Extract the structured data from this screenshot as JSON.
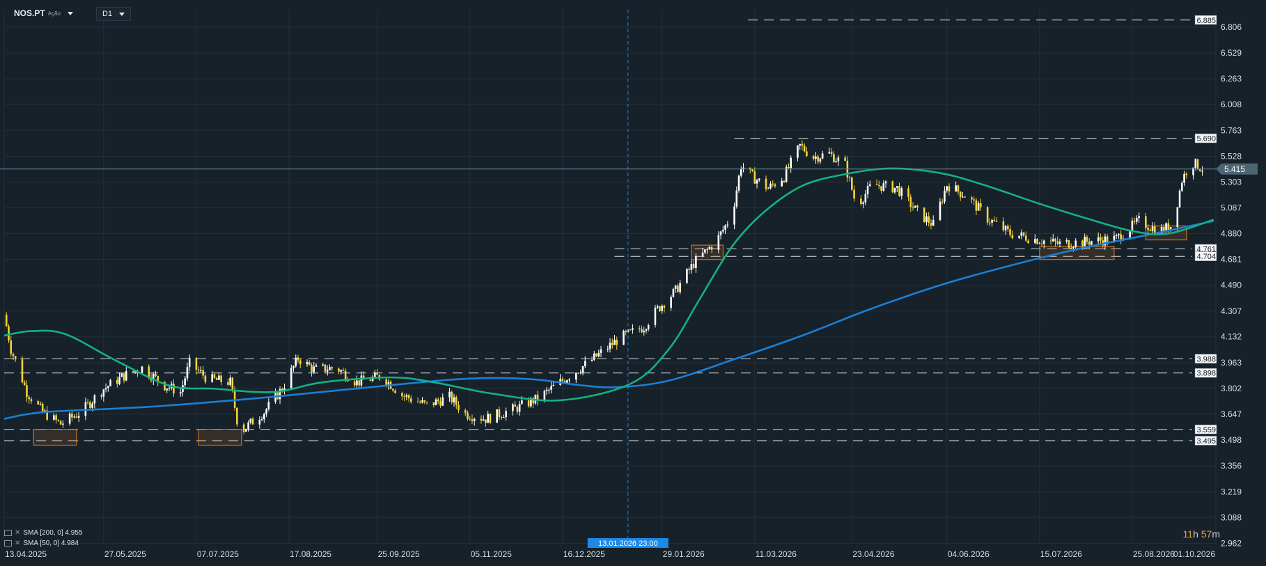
{
  "header": {
    "symbol": "NOS.PT",
    "instrument_type": "Ação",
    "timeframe": "D1"
  },
  "indicators": [
    {
      "label": "SMA [200, 0] 4.955",
      "color": "#1a7fd4"
    },
    {
      "label": "SMA [50, 0] 4.984",
      "color": "#13b184"
    }
  ],
  "timer": {
    "hours": "11",
    "hours_unit": "h",
    "minutes": "57",
    "minutes_unit": "m"
  },
  "colors": {
    "background": "#17212a",
    "grid": "#243039",
    "candle_up": "#ffffff",
    "candle_down": "#f2d43a",
    "sma200": "#1a7fd4",
    "sma50": "#13b184",
    "zone": "#e67e22",
    "crosshair": "#1e88e5"
  },
  "chart_data": {
    "type": "candlestick",
    "y_axis": {
      "range": [
        2.96,
        7.0
      ],
      "ticks": [
        "6.806",
        "6.529",
        "6.263",
        "6.008",
        "5.763",
        "5.528",
        "5.303",
        "5.087",
        "4.880",
        "4.681",
        "4.490",
        "4.307",
        "4.132",
        "3.963",
        "3.802",
        "3.647",
        "3.498",
        "3.356",
        "3.219",
        "3.088",
        "2.962"
      ]
    },
    "x_axis": {
      "range": [
        "2025-04-13",
        "2026-10-01"
      ],
      "ticks": [
        "13.04.2025",
        "27.05.2025",
        "07.07.2025",
        "17.08.2025",
        "25.09.2025",
        "05.11.2025",
        "16.12.2025",
        "29.01.2026",
        "11.03.2026",
        "23.04.2026",
        "04.06.2026",
        "15.07.2026",
        "25.08.2026",
        "01.10.2026"
      ]
    },
    "crosshair": {
      "label": "13.01.2026 23:00"
    },
    "current_price": "5.415",
    "levels": [
      {
        "label": "6.885",
        "value": 6.885,
        "from": "2026-03-08"
      },
      {
        "label": "5.690",
        "value": 5.69,
        "from": "2026-03-02"
      },
      {
        "label": "4.761",
        "value": 4.761,
        "from": "2026-01-08"
      },
      {
        "label": "4.704",
        "value": 4.704,
        "from": "2026-01-08"
      },
      {
        "label": "3.988",
        "value": 3.988,
        "from": "2025-04-13"
      },
      {
        "label": "3.898",
        "value": 3.898,
        "from": "2025-04-13"
      },
      {
        "label": "3.559",
        "value": 3.559,
        "from": "2025-04-13"
      },
      {
        "label": "3.495",
        "value": 3.495,
        "from": "2025-04-13"
      }
    ],
    "zones": [
      {
        "start": "2025-04-26",
        "end": "2025-05-15",
        "low": 3.47,
        "high": 3.56
      },
      {
        "start": "2025-07-08",
        "end": "2025-07-27",
        "low": 3.47,
        "high": 3.56
      },
      {
        "start": "2026-02-11",
        "end": "2026-02-25",
        "low": 4.68,
        "high": 4.79
      },
      {
        "start": "2026-07-15",
        "end": "2026-08-17",
        "low": 4.68,
        "high": 4.78
      },
      {
        "start": "2026-08-31",
        "end": "2026-09-18",
        "low": 4.83,
        "high": 4.94
      }
    ],
    "price_path": [
      [
        "2025-04-13",
        4.28
      ],
      [
        "2025-04-16",
        4.05
      ],
      [
        "2025-04-23",
        3.78
      ],
      [
        "2025-04-30",
        3.66
      ],
      [
        "2025-05-08",
        3.59
      ],
      [
        "2025-05-17",
        3.66
      ],
      [
        "2025-05-27",
        3.8
      ],
      [
        "2025-06-05",
        3.88
      ],
      [
        "2025-06-13",
        3.93
      ],
      [
        "2025-06-23",
        3.82
      ],
      [
        "2025-06-30",
        3.78
      ],
      [
        "2025-07-04",
        3.96
      ],
      [
        "2025-07-12",
        3.86
      ],
      [
        "2025-07-22",
        3.84
      ],
      [
        "2025-07-26",
        3.54
      ],
      [
        "2025-08-06",
        3.66
      ],
      [
        "2025-08-14",
        3.8
      ],
      [
        "2025-08-21",
        3.99
      ],
      [
        "2025-08-28",
        3.92
      ],
      [
        "2025-09-07",
        3.93
      ],
      [
        "2025-09-16",
        3.84
      ],
      [
        "2025-09-27",
        3.88
      ],
      [
        "2025-10-06",
        3.76
      ],
      [
        "2025-10-17",
        3.7
      ],
      [
        "2025-10-27",
        3.75
      ],
      [
        "2025-11-03",
        3.65
      ],
      [
        "2025-11-12",
        3.62
      ],
      [
        "2025-11-25",
        3.68
      ],
      [
        "2025-12-05",
        3.74
      ],
      [
        "2025-12-16",
        3.85
      ],
      [
        "2025-12-28",
        3.97
      ],
      [
        "2026-01-10",
        4.12
      ],
      [
        "2026-01-21",
        4.2
      ],
      [
        "2026-01-27",
        4.32
      ],
      [
        "2026-02-04",
        4.45
      ],
      [
        "2026-02-12",
        4.65
      ],
      [
        "2026-02-22",
        4.82
      ],
      [
        "2026-03-01",
        5.03
      ],
      [
        "2026-03-05",
        5.45
      ],
      [
        "2026-03-10",
        5.35
      ],
      [
        "2026-03-17",
        5.25
      ],
      [
        "2026-03-24",
        5.35
      ],
      [
        "2026-03-31",
        5.62
      ],
      [
        "2026-04-06",
        5.52
      ],
      [
        "2026-04-13",
        5.55
      ],
      [
        "2026-04-20",
        5.45
      ],
      [
        "2026-04-25",
        5.1
      ],
      [
        "2026-05-02",
        5.28
      ],
      [
        "2026-05-13",
        5.25
      ],
      [
        "2026-05-22",
        5.05
      ],
      [
        "2026-05-29",
        4.95
      ],
      [
        "2026-06-04",
        5.28
      ],
      [
        "2026-06-13",
        5.18
      ],
      [
        "2026-06-22",
        5.0
      ],
      [
        "2026-07-02",
        4.88
      ],
      [
        "2026-07-12",
        4.84
      ],
      [
        "2026-07-24",
        4.8
      ],
      [
        "2026-08-06",
        4.82
      ],
      [
        "2026-08-18",
        4.84
      ],
      [
        "2026-08-28",
        4.98
      ],
      [
        "2026-09-06",
        4.9
      ],
      [
        "2026-09-12",
        4.95
      ],
      [
        "2026-09-16",
        5.32
      ],
      [
        "2026-09-20",
        5.48
      ],
      [
        "2026-09-25",
        5.42
      ]
    ],
    "sma200": [
      [
        "2025-04-13",
        3.62
      ],
      [
        "2025-05-01",
        3.66
      ],
      [
        "2025-06-15",
        3.69
      ],
      [
        "2025-08-01",
        3.74
      ],
      [
        "2025-09-15",
        3.8
      ],
      [
        "2025-11-01",
        3.86
      ],
      [
        "2025-12-01",
        3.86
      ],
      [
        "2025-12-25",
        3.82
      ],
      [
        "2026-01-10",
        3.81
      ],
      [
        "2026-02-01",
        3.85
      ],
      [
        "2026-03-01",
        3.98
      ],
      [
        "2026-04-01",
        4.14
      ],
      [
        "2026-05-01",
        4.32
      ],
      [
        "2026-06-01",
        4.49
      ],
      [
        "2026-07-01",
        4.63
      ],
      [
        "2026-08-01",
        4.76
      ],
      [
        "2026-09-01",
        4.87
      ],
      [
        "2026-09-30",
        4.98
      ]
    ],
    "sma50": [
      [
        "2025-04-13",
        4.14
      ],
      [
        "2025-04-25",
        4.17
      ],
      [
        "2025-05-10",
        4.15
      ],
      [
        "2025-06-01",
        3.98
      ],
      [
        "2025-06-25",
        3.82
      ],
      [
        "2025-07-15",
        3.8
      ],
      [
        "2025-08-10",
        3.78
      ],
      [
        "2025-09-01",
        3.84
      ],
      [
        "2025-10-01",
        3.87
      ],
      [
        "2025-10-20",
        3.84
      ],
      [
        "2025-11-15",
        3.77
      ],
      [
        "2025-12-15",
        3.73
      ],
      [
        "2026-01-15",
        3.83
      ],
      [
        "2026-02-01",
        4.05
      ],
      [
        "2026-02-15",
        4.4
      ],
      [
        "2026-03-01",
        4.78
      ],
      [
        "2026-03-15",
        5.05
      ],
      [
        "2026-04-01",
        5.27
      ],
      [
        "2026-04-20",
        5.37
      ],
      [
        "2026-05-10",
        5.42
      ],
      [
        "2026-06-01",
        5.38
      ],
      [
        "2026-06-20",
        5.28
      ],
      [
        "2026-07-15",
        5.12
      ],
      [
        "2026-08-05",
        5.0
      ],
      [
        "2026-08-25",
        4.9
      ],
      [
        "2026-09-10",
        4.88
      ],
      [
        "2026-09-30",
        4.99
      ]
    ]
  }
}
